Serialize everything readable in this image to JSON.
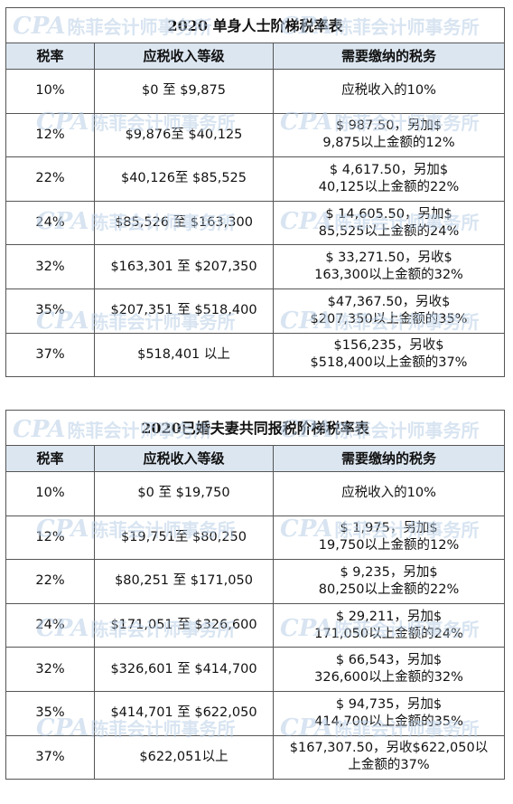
{
  "table1": {
    "title": "2020 单身人士阶梯税率表",
    "headers": [
      "税率",
      "应税收入等级",
      "需要缴纳的税务"
    ],
    "rows": [
      {
        "rate": "10%",
        "bracket": "$0 至 $9,875",
        "tax_line1": "应税收入的10%",
        "tax_line2": ""
      },
      {
        "rate": "12%",
        "bracket": "$9,876至 $40,125",
        "tax_line1": "$ 987.50，另加$",
        "tax_line2": "9,875以上金额的12%"
      },
      {
        "rate": "22%",
        "bracket": "$40,126至 $85,525",
        "tax_line1": "$ 4,617.50，另加$",
        "tax_line2": "40,125以上金额的22%"
      },
      {
        "rate": "24%",
        "bracket": "$85,526 至 $163,300",
        "tax_line1": "$ 14,605.50，另加$",
        "tax_line2": "85,525以上金额的24%"
      },
      {
        "rate": "32%",
        "bracket": "$163,301 至 $207,350",
        "tax_line1": "$ 33,271.50，另收$",
        "tax_line2": "163,300以上金额的32%"
      },
      {
        "rate": "35%",
        "bracket": "$207,351 至 $518,400",
        "tax_line1": "$47,367.50，另收$",
        "tax_line2": "$207,350以上金额的35%"
      },
      {
        "rate": "37%",
        "bracket": "$518,401 以上",
        "tax_line1": "$156,235，另收$",
        "tax_line2": "$518,400以上金额的37%"
      }
    ]
  },
  "table2": {
    "title": "2020已婚夫妻共同报税阶梯税率表",
    "headers": [
      "税率",
      "应税收入等级",
      "需要缴纳的税务"
    ],
    "rows": [
      {
        "rate": "10%",
        "bracket": "$0 至 $19,750",
        "tax_line1": "应税收入的10%",
        "tax_line2": ""
      },
      {
        "rate": "12%",
        "bracket": "$19,751至 $80,250",
        "tax_line1": "$ 1,975，另加$",
        "tax_line2": "19,750以上金额的12%"
      },
      {
        "rate": "22%",
        "bracket": "$80,251 至 $171,050",
        "tax_line1": "$ 9,235，另加$",
        "tax_line2": "80,250以上金额的22%"
      },
      {
        "rate": "24%",
        "bracket": "$171,051 至 $326,600",
        "tax_line1": "$ 29,211，另加$",
        "tax_line2": "171,050以上金额的24%"
      },
      {
        "rate": "32%",
        "bracket": "$326,601 至 $414,700",
        "tax_line1": "$ 66,543，另加$",
        "tax_line2": "326,600以上金额的32%"
      },
      {
        "rate": "35%",
        "bracket": "$414,701 至 $622,050",
        "tax_line1": "$ 94,735，另加$",
        "tax_line2": "414,700以上金额的35%"
      },
      {
        "rate": "37%",
        "bracket": "$622,051以上",
        "tax_line1": "$167,307.50，另收$622,050以",
        "tax_line2": "上金额的37%"
      }
    ]
  },
  "watermark": {
    "logo": "CPA",
    "text": "陈菲会计师事务所"
  },
  "colors": {
    "header_bg": "#dce6f1",
    "border": "#555555",
    "watermark": "#b9cfe6"
  }
}
